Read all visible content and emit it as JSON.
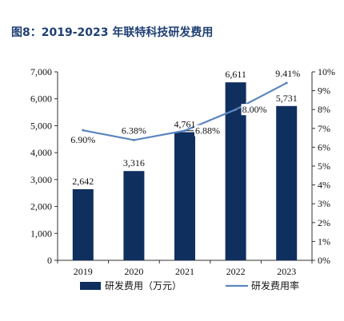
{
  "figure_title": "图8：2019-2023 年联特科技研发费用",
  "chart_data": {
    "type": "bar",
    "title": "图8：2019-2023 年联特科技研发费用",
    "categories": [
      "2019",
      "2020",
      "2021",
      "2022",
      "2023"
    ],
    "series": [
      {
        "name": "研发费用（万元）",
        "type": "bar",
        "axis": "left",
        "values": [
          2642,
          3316,
          4761,
          6611,
          5731
        ],
        "labels": [
          "2,642",
          "3,316",
          "4,761",
          "6,611",
          "5,731"
        ],
        "color": "#0F2F5F"
      },
      {
        "name": "研发费用率",
        "type": "line",
        "axis": "right",
        "values": [
          6.9,
          6.38,
          6.88,
          8.0,
          9.41
        ],
        "labels": [
          "6.90%",
          "6.38%",
          "6.88%",
          "8.00%",
          "9.41%"
        ],
        "color": "#5B86C0"
      }
    ],
    "y_left": {
      "lim": [
        0,
        7000
      ],
      "ticks": [
        0,
        1000,
        2000,
        3000,
        4000,
        5000,
        6000,
        7000
      ],
      "tick_labels": [
        "0",
        "1,000",
        "2,000",
        "3,000",
        "4,000",
        "5,000",
        "6,000",
        "7,000"
      ]
    },
    "y_right": {
      "lim": [
        0,
        10
      ],
      "ticks": [
        0,
        1,
        2,
        3,
        4,
        5,
        6,
        7,
        8,
        9,
        10
      ],
      "tick_labels": [
        "0%",
        "1%",
        "2%",
        "3%",
        "4%",
        "5%",
        "6%",
        "7%",
        "8%",
        "9%",
        "10%"
      ]
    },
    "grid": false,
    "legend_position": "bottom"
  }
}
